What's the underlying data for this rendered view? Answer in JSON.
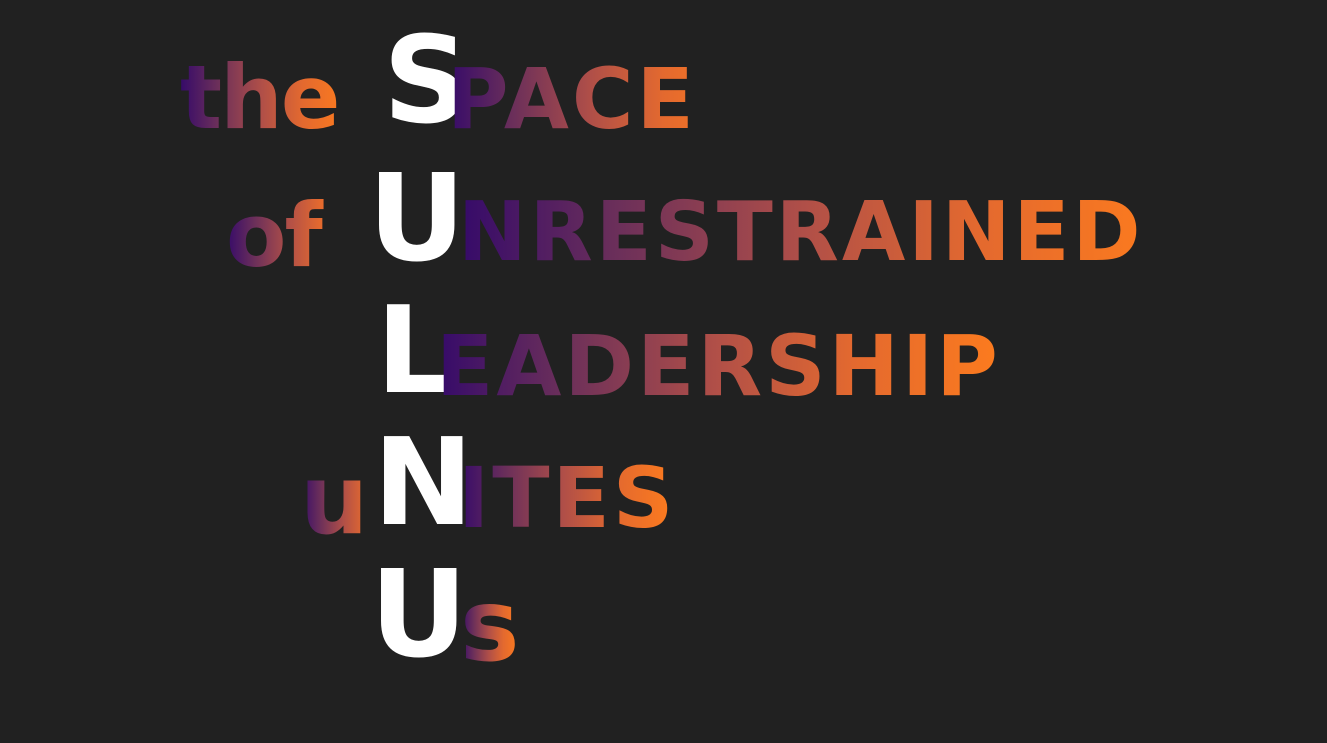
{
  "lines": [
    {
      "prefix": "the",
      "initial": "S",
      "rest": "PACE"
    },
    {
      "prefix": "of",
      "initial": "U",
      "rest": "NRESTRAINED"
    },
    {
      "prefix": "",
      "initial": "L",
      "rest": "EADERSHIP"
    },
    {
      "prefix": "u",
      "initial": "N",
      "rest": "ITES"
    },
    {
      "prefix": "",
      "initial": "U",
      "rest": "s"
    }
  ],
  "colors": {
    "background": "#212121",
    "initial": "#ffffff",
    "gradient_start": "#350a6a",
    "gradient_end": "#ff7d1c"
  }
}
